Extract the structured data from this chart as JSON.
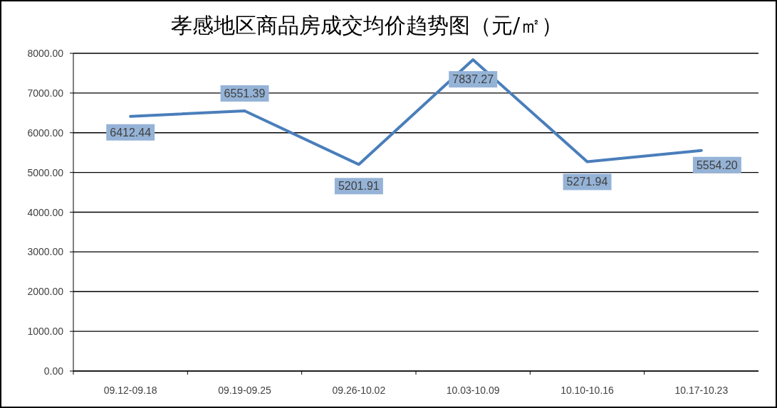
{
  "chart_data": {
    "type": "line",
    "title": "孝感地区商品房成交均价趋势图（元/㎡）",
    "categories": [
      "09.12-09.18",
      "09.19-09.25",
      "09.26-10.02",
      "10.03-10.09",
      "10.10-10.16",
      "10.17-10.23"
    ],
    "values": [
      6412.44,
      6551.39,
      5201.91,
      7837.27,
      5271.94,
      5554.2
    ],
    "value_labels": [
      "6412.44",
      "6551.39",
      "5201.91",
      "7837.27",
      "5271.94",
      "5554.20"
    ],
    "color": "#4a7ebb",
    "ylim": [
      0,
      8000
    ],
    "yticks": [
      {
        "value": 0,
        "label": "0.00"
      },
      {
        "value": 1000,
        "label": "1000.00"
      },
      {
        "value": 2000,
        "label": "2000.00"
      },
      {
        "value": 3000,
        "label": "3000.00"
      },
      {
        "value": 4000,
        "label": "4000.00"
      },
      {
        "value": 5000,
        "label": "5000.00"
      },
      {
        "value": 6000,
        "label": "6000.00"
      },
      {
        "value": 7000,
        "label": "7000.00"
      },
      {
        "value": 8000,
        "label": "8000.00"
      }
    ],
    "grid": "y",
    "marker": "none",
    "line_style": "solid"
  }
}
